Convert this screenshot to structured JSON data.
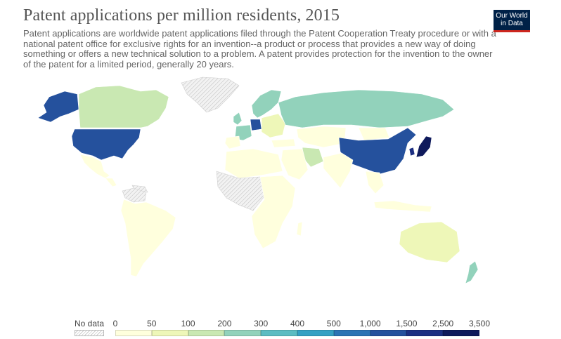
{
  "header": {
    "title": "Patent applications per million residents, 2015",
    "subtitle": "Patent applications are worldwide patent applications filed through the Patent Cooperation Treaty procedure or with a national patent office for exclusive rights for an invention--a product or process that provides a new way of doing something or offers a new technical solution to a problem. A patent provides protection for the invention to the owner of the patent for a limited period, generally 20 years."
  },
  "logo": {
    "line1": "Our World",
    "line2": "in Data"
  },
  "legend": {
    "no_data_label": "No data",
    "ticks": [
      "0",
      "50",
      "100",
      "200",
      "300",
      "400",
      "500",
      "1,000",
      "1,500",
      "2,500",
      "3,500"
    ],
    "colors": [
      "#ffffdd",
      "#eef7b8",
      "#c9e8b2",
      "#92d2bb",
      "#5cbcc2",
      "#35a0c3",
      "#2b74b4",
      "#25519d",
      "#1c2f82",
      "#0f1a5c"
    ]
  },
  "map_colors": {
    "no_data": "#e8e8e8",
    "ocean": "#ffffff"
  }
}
